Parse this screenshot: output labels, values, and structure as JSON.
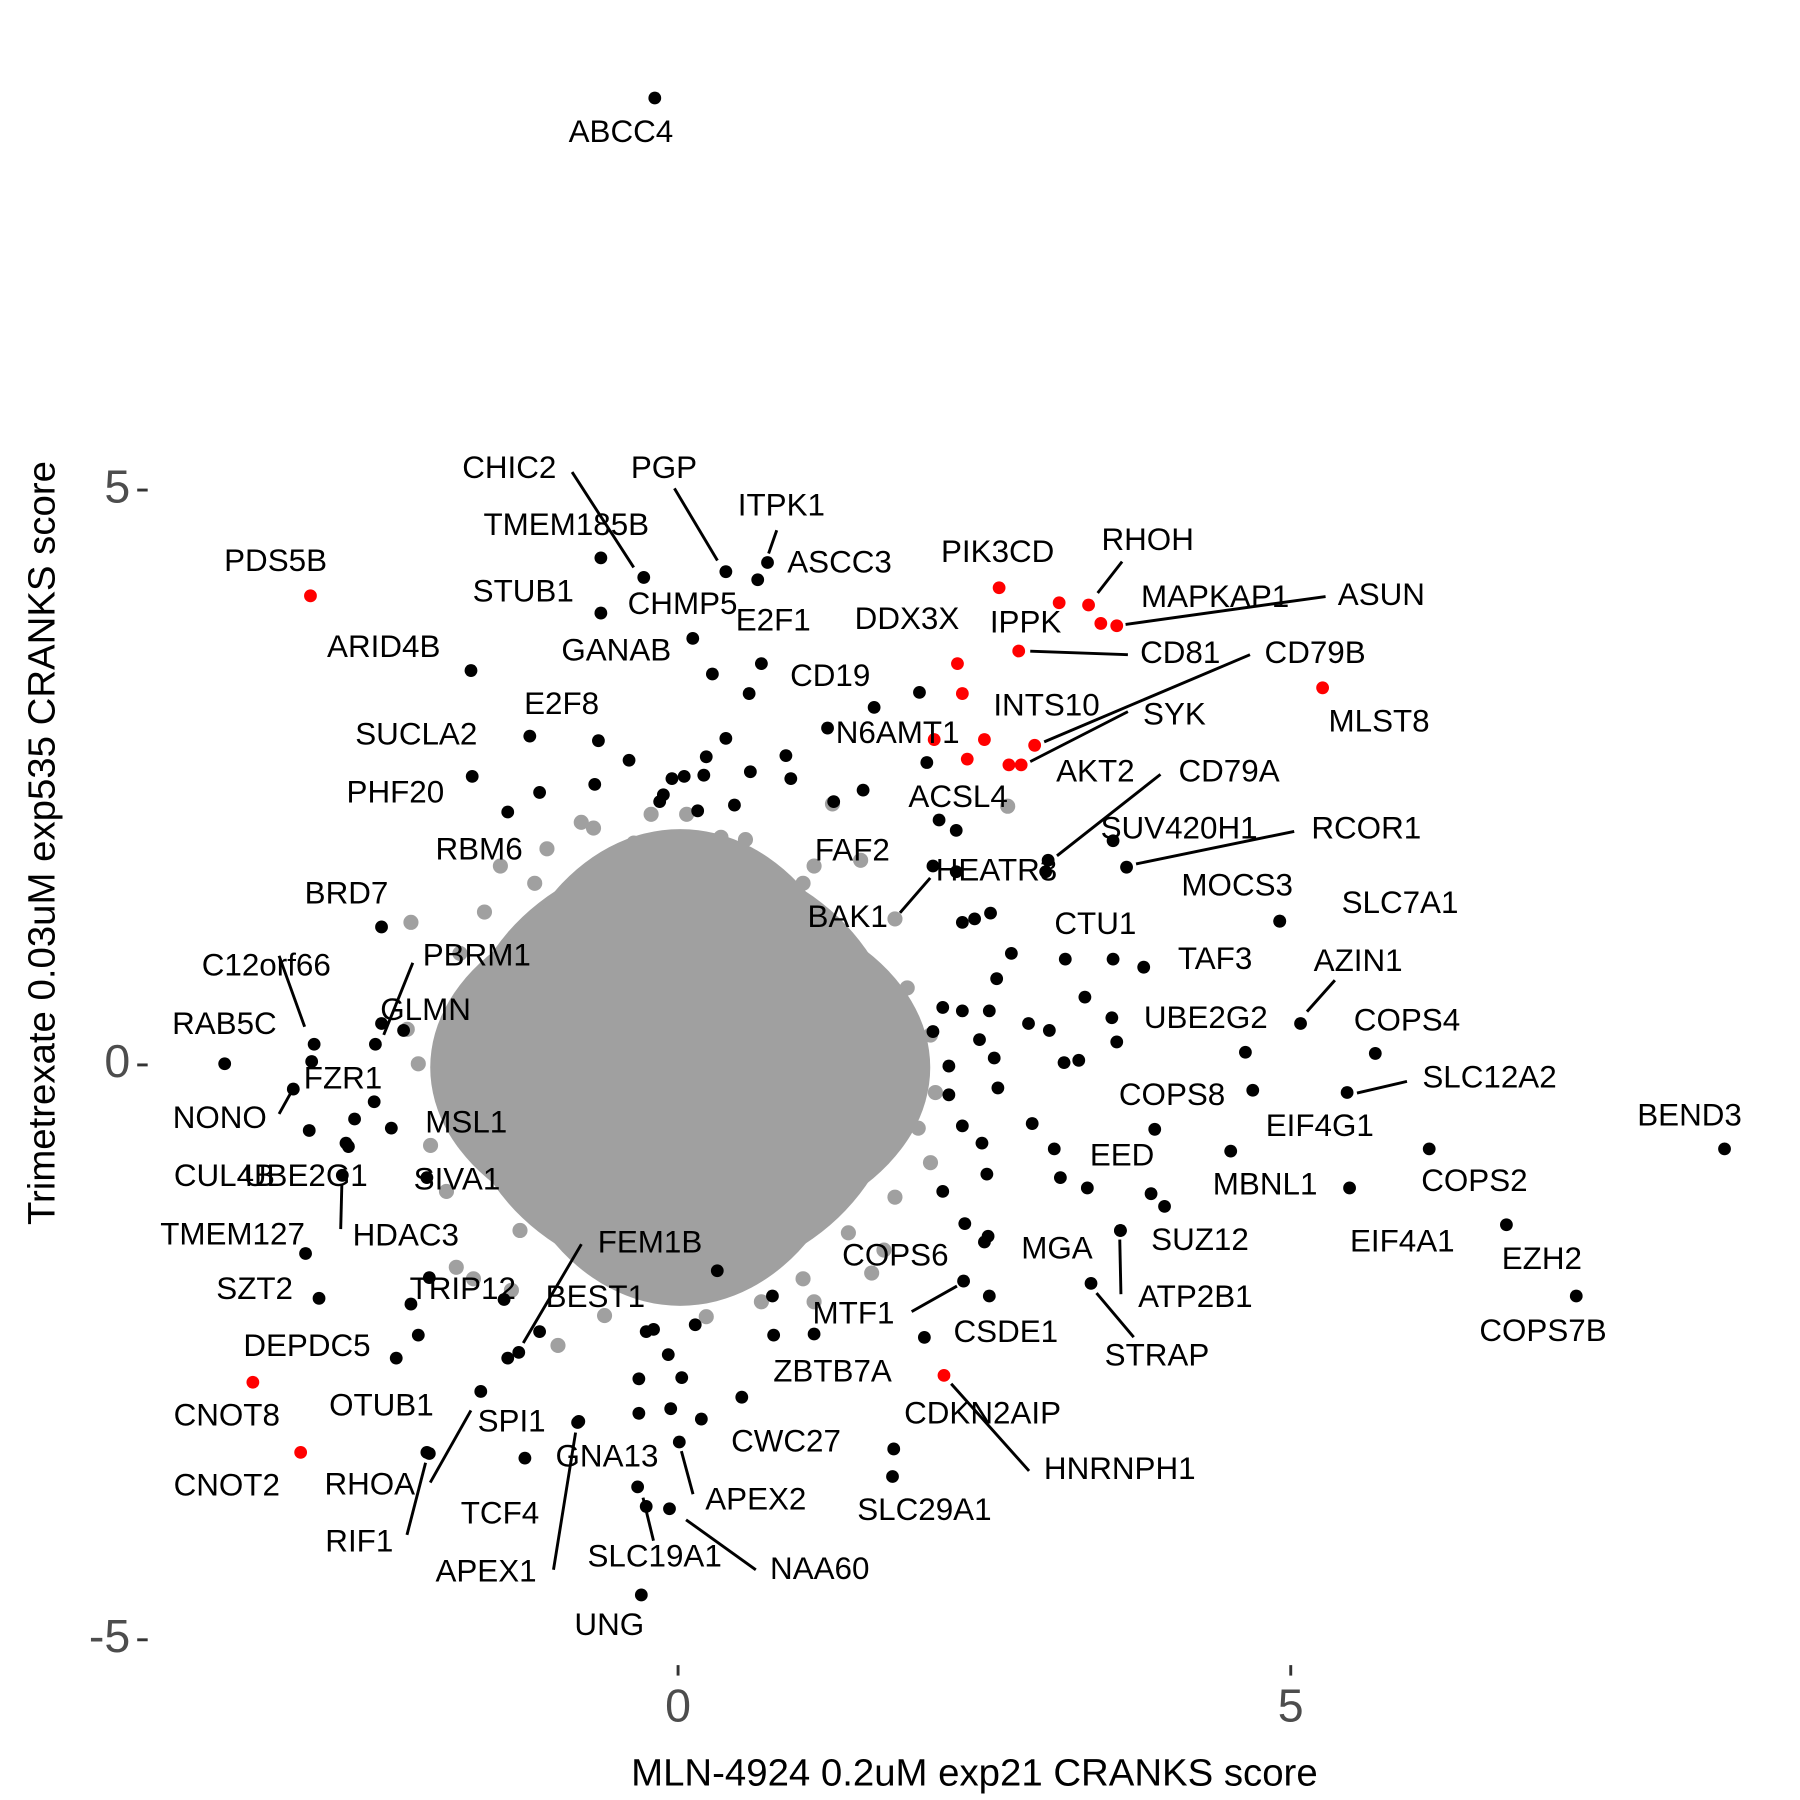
{
  "chart_data": {
    "type": "scatter",
    "xlabel": "MLN-4924 0.2uM exp21 CRANKS score",
    "ylabel": "Trimetrexate 0.03uM exp535 CRANKS score",
    "xlim": [
      -4.3,
      9.08
    ],
    "ylim": [
      -5.2,
      9.06
    ],
    "xticks": [
      0,
      5
    ],
    "yticks": [
      -5,
      0,
      5
    ],
    "grid": false,
    "series": [
      {
        "color": "#a0a0a0",
        "x": [
          -0.79,
          -0.69,
          -0.22,
          0.07,
          1.26,
          2.69,
          0.55,
          -1.58,
          -2.18,
          -2.21,
          -2.12,
          -2.02,
          -1.89,
          -1.81,
          -1.67,
          -1.29,
          -0.98,
          -0.6,
          0.23,
          0.68,
          1.11,
          1.68,
          1.77,
          1.96,
          2.06,
          1.87,
          1.77,
          1.49,
          1.11,
          -1.17,
          -1.45,
          -1.07,
          -1.78,
          -1.36,
          1.58,
          1.02,
          1.02,
          2.06,
          2.1,
          1.39,
          0.35,
          -0.36
        ],
        "y": [
          2.11,
          2.06,
          2.18,
          2.18,
          2.27,
          2.25,
          1.96,
          1.33,
          1.24,
          0.31,
          0.01,
          -0.7,
          -1.1,
          -1.76,
          -1.86,
          -1.44,
          -2.44,
          -2.18,
          -2.19,
          -2.06,
          -2.06,
          -1.61,
          -1.15,
          -0.55,
          0.26,
          0.67,
          1.27,
          1.78,
          1.73,
          1.58,
          1.73,
          1.88,
          0.97,
          -1.96,
          -1.81,
          -1.86,
          1.58,
          -0.85,
          -0.24,
          -1.46,
          1.98,
          1.93
        ]
      },
      {
        "color": "#000000",
        "x": [
          0.58,
          0.39,
          -0.4,
          -0.65,
          -0.05,
          0.21,
          0.59,
          0.88,
          0.92,
          1.22,
          1.51,
          1.27,
          1.97,
          2.03,
          2.13,
          2.27,
          2.32,
          2.42,
          2.55,
          2.72,
          2.6,
          2.54,
          2.32,
          2.16,
          2.08,
          2.46,
          2.86,
          3.03,
          3.15,
          3.27,
          3.58,
          3.54,
          3.32,
          3.16,
          2.58,
          2.61,
          2.21,
          2.21,
          2.32,
          2.48,
          2.89,
          3.07,
          3.12,
          2.52,
          2.16,
          2.34,
          3.86,
          3.97,
          2.53,
          1.11,
          0.77,
          0.14,
          -0.08,
          -0.06,
          0.52,
          -0.26,
          0.32,
          0.03,
          -0.32,
          -0.32,
          -0.2,
          -1.39,
          -2.03,
          -2.18,
          -1.42,
          -2.64,
          -2.69,
          -2.42,
          -2.24,
          -0.68,
          -0.15,
          0.46,
          0.16,
          0.23,
          -0.12,
          0.05
        ],
        "y": [
          3.23,
          2.84,
          2.65,
          2.82,
          2.49,
          2.52,
          2.55,
          2.69,
          2.49,
          2.93,
          2.39,
          2.29,
          3.24,
          2.63,
          2.13,
          2.04,
          1.24,
          1.27,
          1.32,
          0.97,
          0.75,
          0.47,
          0.47,
          0.5,
          0.29,
          0.22,
          0.36,
          0.3,
          0.02,
          0.04,
          0.2,
          0.41,
          0.59,
          0.92,
          0.06,
          -0.2,
          -0.01,
          -0.26,
          -0.53,
          -0.68,
          -0.51,
          -0.73,
          -0.98,
          -0.95,
          -1.1,
          -1.38,
          -1.12,
          -1.23,
          -1.49,
          -2.34,
          -2.01,
          -2.26,
          -2.52,
          -2.99,
          -2.89,
          -2.32,
          -1.79,
          -2.72,
          -2.73,
          -3.03,
          -2.3,
          -2.55,
          -1.85,
          -2.08,
          -2.04,
          -0.47,
          -0.71,
          0.36,
          0.3,
          2.44,
          2.29,
          2.26,
          2.21,
          2.68,
          2.35,
          2.51
        ]
      },
      {
        "color": "#000000",
        "labels": [
          "ABCC4",
          "CHIC2",
          "PGP",
          "TMEM185B",
          "ITPK1",
          "ASCC3",
          "STUB1",
          "CHMP5",
          "GANAB",
          "E2F1",
          "ARID4B",
          "E2F8",
          "SUCLA2",
          "PHF20",
          "RBM6",
          "BRD7",
          "C12orf66",
          "PBRM1",
          "RAB5C",
          "GLMN",
          "FZR1",
          "NONO",
          "MSL1",
          "CUL4B",
          "UBE2G1",
          "SIVA1",
          "TMEM127",
          "HDAC3",
          "SZT2",
          "TRIP12",
          "FEM1B",
          "BEST1",
          "DEPDC5",
          "OTUB1",
          "SPI1",
          "RHOA",
          "RIF1",
          "GNA13",
          "TCF4",
          "APEX1",
          "SLC19A1",
          "UNG",
          "APEX2",
          "NAA60",
          "CWC27",
          "ZBTB7A",
          "CSDE1",
          "MTF1",
          "COPS6",
          "MGA",
          "STRAP",
          "ATP2B1",
          "SUZ12",
          "EED",
          "COPS8",
          "MBNL1",
          "EIF4G1",
          "EIF4A1",
          "COPS2",
          "EZH2",
          "COPS7B",
          "BEND3",
          "SLC12A2",
          "COPS4",
          "UBE2G2",
          "AZIN1",
          "SLC7A1",
          "MOCS3",
          "TAF3",
          "CTU1",
          "RCOR1",
          "SUV420H1",
          "CD79A",
          "HEATR3",
          "FAF2",
          "BAK1",
          "CD19",
          "CDKN2AIP",
          "SLC29A1"
        ],
        "x": [
          -0.19,
          -0.28,
          0.39,
          -0.63,
          0.73,
          0.65,
          -0.63,
          0.12,
          0.28,
          0.68,
          -1.69,
          -1.21,
          -1.68,
          -1.13,
          -1.39,
          -2.42,
          -2.97,
          -2.47,
          -3.7,
          -2.48,
          -2.99,
          -3.14,
          -2.34,
          -3.01,
          -2.71,
          -2.05,
          -3.04,
          -2.74,
          -2.93,
          -2.12,
          -1.3,
          -1.13,
          -2.3,
          -1.61,
          -1.25,
          -2.05,
          -2.03,
          -0.81,
          -0.33,
          -0.82,
          -0.26,
          -0.3,
          0.01,
          -0.07,
          0.19,
          0.78,
          2.01,
          2.33,
          2.54,
          2.5,
          3.37,
          3.61,
          3.61,
          3.34,
          3.89,
          4.51,
          4.69,
          5.48,
          6.13,
          6.76,
          7.33,
          8.54,
          5.46,
          5.69,
          4.63,
          5.08,
          4.91,
          4.91,
          3.8,
          3.55,
          3.66,
          3.55,
          3.02,
          3.0,
          2.08,
          2.27,
          1.6,
          1.76,
          1.75
        ],
        "y": [
          8.41,
          4.24,
          4.29,
          4.41,
          4.37,
          4.22,
          3.93,
          3.71,
          3.4,
          3.49,
          3.43,
          2.86,
          2.51,
          2.37,
          2.2,
          1.2,
          0.18,
          0.18,
          0.01,
          -0.32,
          0.03,
          -0.21,
          -0.55,
          -0.57,
          -0.68,
          -0.98,
          -1.64,
          -0.96,
          -2.03,
          -2.35,
          -2.5,
          -2.32,
          -2.55,
          -2.84,
          -3.42,
          -3.37,
          -3.38,
          -3.1,
          -3.67,
          -3.11,
          -3.84,
          -4.61,
          -3.28,
          -3.86,
          -3.08,
          -2.35,
          -2.37,
          -1.88,
          -2.01,
          -1.54,
          -1.9,
          -1.44,
          -1.44,
          -1.07,
          -0.56,
          -0.75,
          -0.22,
          -1.07,
          -0.73,
          -1.39,
          -2.01,
          -0.73,
          -0.24,
          0.1,
          0.11,
          0.36,
          1.25,
          1.25,
          0.85,
          0.92,
          1.72,
          1.95,
          1.78,
          1.68,
          1.73,
          1.68,
          3.11,
          -3.34,
          -3.58
        ]
      },
      {
        "color": "#ff0000",
        "labels": [
          "PDS5B",
          "PIK3CD",
          "IPPK",
          "RHOH",
          "MAPKAP1",
          "ASUN",
          "CD81",
          "DDX3X",
          null,
          "INTS10",
          "N6AMT1",
          "ACSL4",
          "AKT2",
          "SYK",
          "CD79B",
          "MLST8",
          "CNOT8",
          "CNOT2",
          "HNRNPH1"
        ],
        "x": [
          -3.0,
          2.62,
          3.11,
          3.35,
          3.45,
          3.58,
          2.78,
          2.28,
          2.32,
          2.5,
          2.09,
          2.36,
          2.7,
          2.8,
          2.91,
          5.26,
          -3.47,
          -3.08,
          2.17
        ],
        "y": [
          4.08,
          4.15,
          4.02,
          4.0,
          3.84,
          3.82,
          3.6,
          3.49,
          3.23,
          2.83,
          2.83,
          2.66,
          2.61,
          2.61,
          2.78,
          3.28,
          -2.76,
          -3.37,
          -2.7
        ]
      }
    ]
  }
}
